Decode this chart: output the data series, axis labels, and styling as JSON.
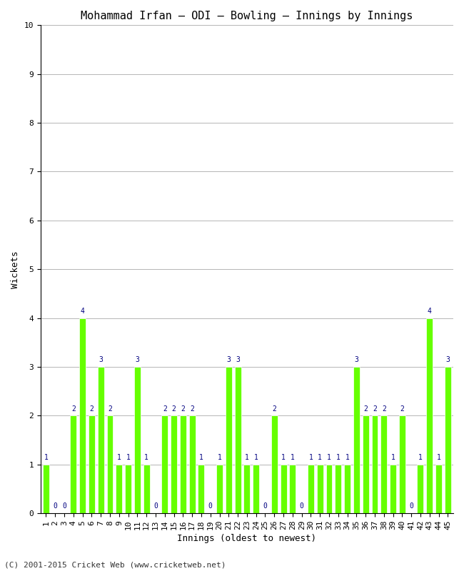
{
  "title": "Mohammad Irfan – ODI – Bowling – Innings by Innings",
  "xlabel": "Innings (oldest to newest)",
  "ylabel": "Wickets",
  "footer": "(C) 2001-2015 Cricket Web (www.cricketweb.net)",
  "ylim": [
    0,
    10
  ],
  "bar_color": "#66ff00",
  "bar_edge_color": "#ffffff",
  "innings": [
    1,
    2,
    3,
    4,
    5,
    6,
    7,
    8,
    9,
    10,
    11,
    12,
    13,
    14,
    15,
    16,
    17,
    18,
    19,
    20,
    21,
    22,
    23,
    24,
    25,
    26,
    27,
    28,
    29,
    30,
    31,
    32,
    33,
    34,
    35,
    36,
    37,
    38,
    39,
    40,
    41,
    42,
    43,
    44,
    45
  ],
  "wickets": [
    1,
    0,
    0,
    2,
    4,
    2,
    3,
    2,
    1,
    1,
    3,
    1,
    0,
    2,
    2,
    2,
    2,
    1,
    0,
    1,
    3,
    3,
    1,
    1,
    0,
    2,
    1,
    1,
    0,
    1,
    1,
    1,
    1,
    1,
    3,
    2,
    2,
    2,
    1,
    2,
    0,
    1,
    4,
    1,
    3
  ],
  "figsize": [
    6.5,
    8.0
  ],
  "dpi": 100,
  "title_fontsize": 11,
  "label_fontsize": 9,
  "tick_fontsize": 8,
  "footer_fontsize": 8,
  "bar_label_fontsize": 7,
  "bar_width": 0.7,
  "grid_color": "#aaaaaa",
  "spine_color": "#000000",
  "text_color": "navy",
  "footer_color": "#333333"
}
